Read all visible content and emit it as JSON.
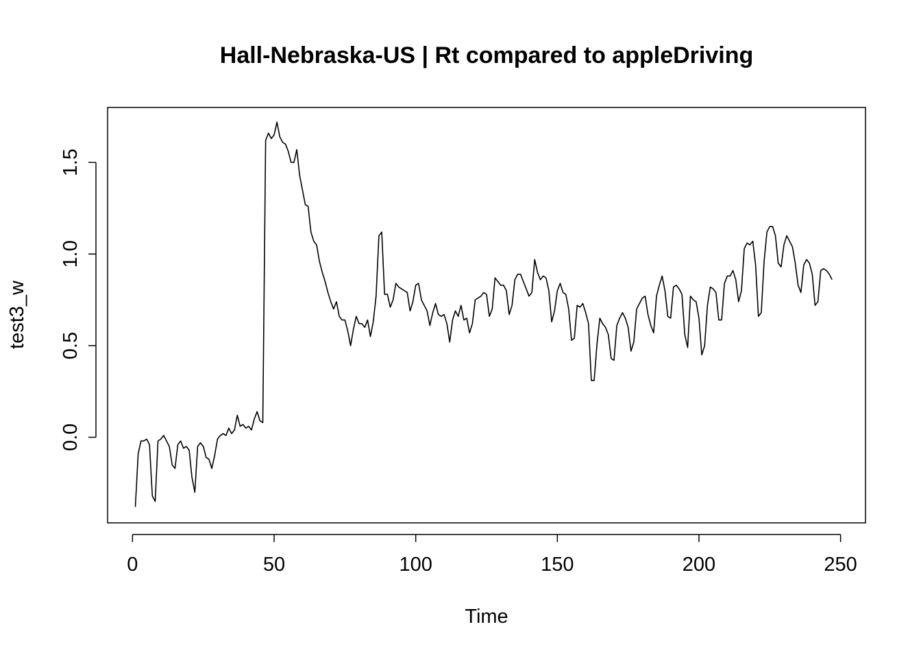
{
  "chart_data": {
    "type": "line",
    "title": "Hall-Nebraska-US | Rt compared to appleDriving",
    "xlabel": "Time",
    "ylabel": "test3_w",
    "xlim": [
      -8.8,
      258.8
    ],
    "ylim": [
      -0.467,
      1.8
    ],
    "x_ticks": [
      0,
      50,
      100,
      150,
      200,
      250
    ],
    "x_tick_labels": [
      "0",
      "50",
      "100",
      "150",
      "200",
      "250"
    ],
    "y_ticks": [
      0.0,
      0.5,
      1.0,
      1.5
    ],
    "y_tick_labels": [
      "0.0",
      "0.5",
      "1.0",
      "1.5"
    ],
    "x_start": 1,
    "x_step": 1,
    "series": [
      {
        "name": "test3_w",
        "values": [
          -0.38,
          -0.09,
          -0.02,
          -0.02,
          -0.01,
          -0.04,
          -0.32,
          -0.35,
          -0.02,
          -0.01,
          0.01,
          -0.02,
          -0.05,
          -0.15,
          -0.17,
          -0.04,
          -0.02,
          -0.06,
          -0.05,
          -0.07,
          -0.22,
          -0.3,
          -0.05,
          -0.03,
          -0.05,
          -0.11,
          -0.12,
          -0.17,
          -0.1,
          -0.01,
          0.01,
          0.02,
          0.01,
          0.05,
          0.02,
          0.04,
          0.12,
          0.06,
          0.07,
          0.05,
          0.06,
          0.04,
          0.1,
          0.14,
          0.09,
          0.08,
          1.62,
          1.66,
          1.63,
          1.65,
          1.72,
          1.64,
          1.61,
          1.6,
          1.56,
          1.5,
          1.5,
          1.57,
          1.43,
          1.35,
          1.27,
          1.26,
          1.12,
          1.07,
          1.05,
          0.96,
          0.9,
          0.85,
          0.79,
          0.74,
          0.7,
          0.74,
          0.66,
          0.64,
          0.64,
          0.58,
          0.5,
          0.59,
          0.66,
          0.62,
          0.62,
          0.6,
          0.64,
          0.55,
          0.63,
          0.77,
          1.1,
          1.12,
          0.78,
          0.78,
          0.71,
          0.75,
          0.84,
          0.82,
          0.81,
          0.8,
          0.79,
          0.69,
          0.74,
          0.83,
          0.84,
          0.75,
          0.72,
          0.69,
          0.61,
          0.68,
          0.73,
          0.67,
          0.66,
          0.67,
          0.62,
          0.52,
          0.64,
          0.69,
          0.66,
          0.72,
          0.64,
          0.65,
          0.57,
          0.62,
          0.75,
          0.76,
          0.77,
          0.79,
          0.78,
          0.66,
          0.7,
          0.87,
          0.85,
          0.83,
          0.83,
          0.8,
          0.67,
          0.72,
          0.86,
          0.89,
          0.89,
          0.85,
          0.81,
          0.77,
          0.79,
          0.97,
          0.9,
          0.86,
          0.88,
          0.87,
          0.8,
          0.63,
          0.69,
          0.8,
          0.84,
          0.79,
          0.78,
          0.7,
          0.53,
          0.54,
          0.72,
          0.71,
          0.73,
          0.68,
          0.62,
          0.31,
          0.31,
          0.51,
          0.65,
          0.62,
          0.6,
          0.56,
          0.43,
          0.42,
          0.61,
          0.65,
          0.68,
          0.65,
          0.6,
          0.47,
          0.52,
          0.7,
          0.73,
          0.76,
          0.77,
          0.67,
          0.61,
          0.57,
          0.77,
          0.83,
          0.88,
          0.8,
          0.66,
          0.65,
          0.82,
          0.83,
          0.81,
          0.78,
          0.56,
          0.49,
          0.77,
          0.75,
          0.74,
          0.65,
          0.45,
          0.5,
          0.72,
          0.82,
          0.81,
          0.79,
          0.64,
          0.64,
          0.84,
          0.88,
          0.88,
          0.91,
          0.86,
          0.74,
          0.8,
          1.03,
          1.06,
          1.05,
          1.07,
          0.94,
          0.66,
          0.68,
          0.96,
          1.12,
          1.15,
          1.15,
          1.1,
          0.95,
          0.93,
          1.05,
          1.1,
          1.07,
          1.04,
          0.95,
          0.83,
          0.79,
          0.94,
          0.97,
          0.95,
          0.89,
          0.72,
          0.74,
          0.91,
          0.92,
          0.91,
          0.89,
          0.86
        ]
      }
    ]
  }
}
